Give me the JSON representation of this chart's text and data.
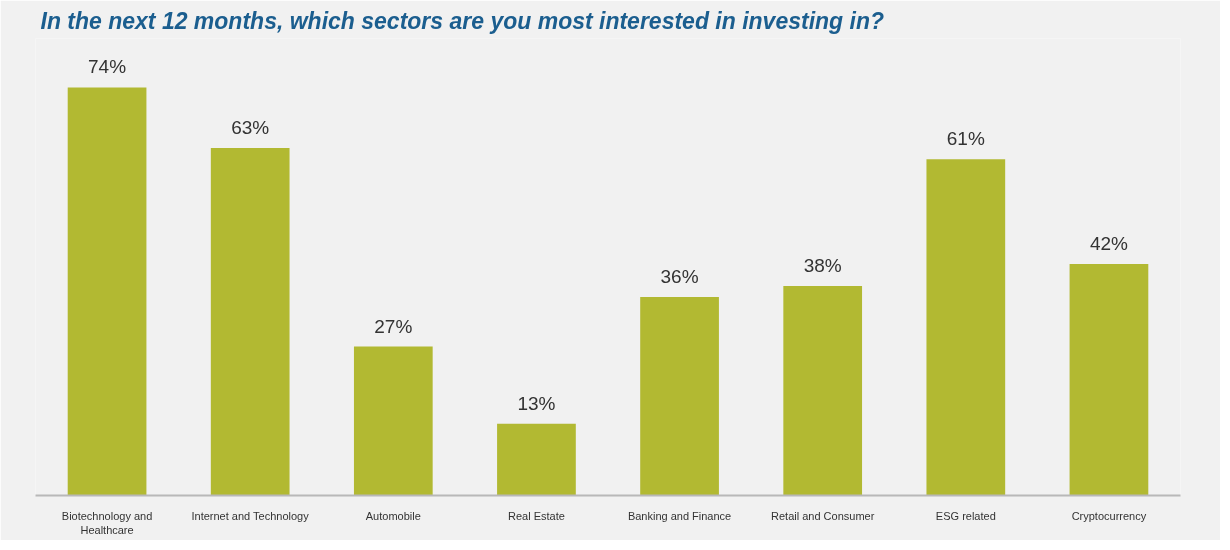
{
  "chart_data": {
    "type": "bar",
    "title": "In the next 12 months, which sectors are you most interested in investing in?",
    "categories": [
      "Biotechnology and Healthcare",
      "Internet and Technology",
      "Automobile",
      "Real Estate",
      "Banking and Finance",
      "Retail and Consumer",
      "ESG related",
      "Cryptocurrency"
    ],
    "values": [
      74,
      63,
      27,
      13,
      36,
      38,
      61,
      42
    ],
    "value_labels": [
      "74%",
      "63%",
      "27%",
      "13%",
      "36%",
      "38%",
      "61%",
      "42%"
    ],
    "color": "#b2b932",
    "grid": false
  }
}
